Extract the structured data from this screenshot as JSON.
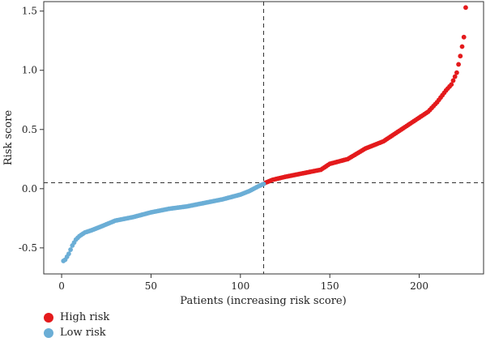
{
  "chart_data": {
    "type": "scatter",
    "xlabel": "Patients (increasing risk score)",
    "ylabel": "Risk score",
    "xlim": [
      -10,
      236
    ],
    "ylim": [
      -0.72,
      1.58
    ],
    "x_ticks": [
      0,
      50,
      100,
      150,
      200
    ],
    "y_ticks": [
      -0.5,
      0.0,
      0.5,
      1.0,
      1.5
    ],
    "y_tick_labels": [
      "-0.5",
      "0.0",
      "0.5",
      "1.0",
      "1.5"
    ],
    "grid": false,
    "legend_position": "bottom-left",
    "cutoff": {
      "x": 113,
      "y": 0.05
    },
    "n_patients": 226,
    "series": [
      {
        "name": "High risk",
        "color": "#e41a1c",
        "x_range": [
          114,
          226
        ],
        "profile": [
          [
            114,
            0.05
          ],
          [
            118,
            0.075
          ],
          [
            125,
            0.1
          ],
          [
            135,
            0.13
          ],
          [
            145,
            0.16
          ],
          [
            150,
            0.21
          ],
          [
            160,
            0.25
          ],
          [
            170,
            0.34
          ],
          [
            180,
            0.4
          ],
          [
            190,
            0.5
          ],
          [
            200,
            0.6
          ],
          [
            205,
            0.65
          ],
          [
            210,
            0.73
          ],
          [
            215,
            0.83
          ],
          [
            218,
            0.88
          ],
          [
            221,
            0.98
          ],
          [
            223,
            1.12
          ],
          [
            224,
            1.2
          ],
          [
            225,
            1.28
          ],
          [
            226,
            1.53
          ]
        ]
      },
      {
        "name": "Low risk",
        "color": "#6baed6",
        "x_range": [
          1,
          113
        ],
        "profile": [
          [
            1,
            -0.61
          ],
          [
            2,
            -0.6
          ],
          [
            4,
            -0.55
          ],
          [
            6,
            -0.48
          ],
          [
            8,
            -0.43
          ],
          [
            10,
            -0.4
          ],
          [
            13,
            -0.37
          ],
          [
            17,
            -0.35
          ],
          [
            22,
            -0.32
          ],
          [
            30,
            -0.27
          ],
          [
            40,
            -0.24
          ],
          [
            50,
            -0.2
          ],
          [
            60,
            -0.17
          ],
          [
            70,
            -0.15
          ],
          [
            80,
            -0.12
          ],
          [
            90,
            -0.09
          ],
          [
            100,
            -0.05
          ],
          [
            105,
            -0.02
          ],
          [
            110,
            0.02
          ],
          [
            113,
            0.04
          ]
        ]
      }
    ]
  }
}
